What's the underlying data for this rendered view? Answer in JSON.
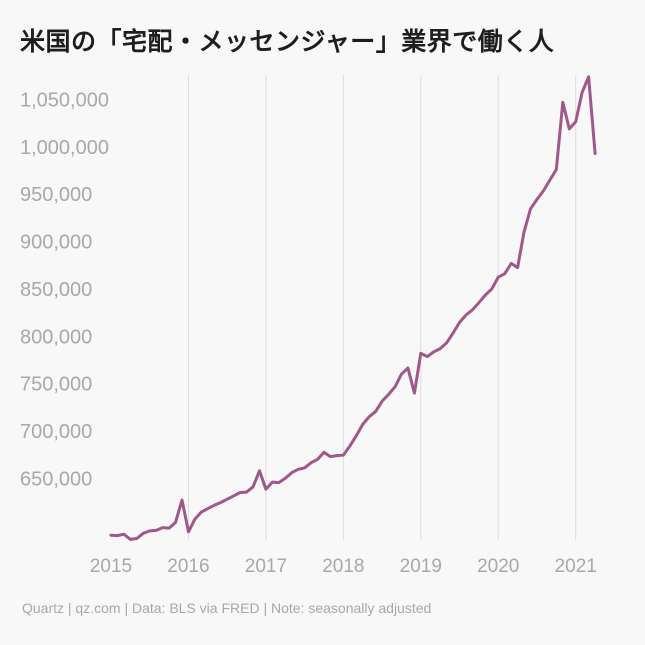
{
  "chart_data": {
    "type": "line",
    "title": "米国の「宅配・メッセンジャー」業界で働く人",
    "xlabel": "",
    "ylabel": "",
    "x_tick_labels": [
      "2015",
      "2016",
      "2017",
      "2018",
      "2019",
      "2020",
      "2021"
    ],
    "y_tick_values": [
      650000,
      700000,
      750000,
      800000,
      850000,
      900000,
      950000,
      1000000,
      1050000
    ],
    "y_tick_labels": [
      "650,000",
      "700,000",
      "750,000",
      "800,000",
      "850,000",
      "900,000",
      "950,000",
      "1,000,000",
      "1,050,000"
    ],
    "ylim": [
      587000,
      1078000
    ],
    "xlim": [
      2015.0,
      2021.417
    ],
    "grid": "vertical",
    "legend": "none",
    "series": [
      {
        "color": "#a0588a",
        "points": [
          [
            2015.0,
            590000
          ],
          [
            2015.083,
            589500
          ],
          [
            2015.167,
            591000
          ],
          [
            2015.25,
            585500
          ],
          [
            2015.333,
            586500
          ],
          [
            2015.417,
            592000
          ],
          [
            2015.5,
            594500
          ],
          [
            2015.583,
            595000
          ],
          [
            2015.667,
            598000
          ],
          [
            2015.75,
            597500
          ],
          [
            2015.833,
            603500
          ],
          [
            2015.917,
            627000
          ],
          [
            2016.0,
            593500
          ],
          [
            2016.083,
            607000
          ],
          [
            2016.167,
            614500
          ],
          [
            2016.25,
            618000
          ],
          [
            2016.333,
            621500
          ],
          [
            2016.417,
            624500
          ],
          [
            2016.5,
            628000
          ],
          [
            2016.583,
            631500
          ],
          [
            2016.667,
            635000
          ],
          [
            2016.75,
            635500
          ],
          [
            2016.833,
            641000
          ],
          [
            2016.917,
            658000
          ],
          [
            2017.0,
            638500
          ],
          [
            2017.083,
            646000
          ],
          [
            2017.167,
            645500
          ],
          [
            2017.25,
            650000
          ],
          [
            2017.333,
            656000
          ],
          [
            2017.417,
            659500
          ],
          [
            2017.5,
            661000
          ],
          [
            2017.583,
            666500
          ],
          [
            2017.667,
            670000
          ],
          [
            2017.75,
            677500
          ],
          [
            2017.833,
            673000
          ],
          [
            2017.917,
            674000
          ],
          [
            2018.0,
            674500
          ],
          [
            2018.083,
            684000
          ],
          [
            2018.167,
            695000
          ],
          [
            2018.25,
            707000
          ],
          [
            2018.333,
            715000
          ],
          [
            2018.417,
            720500
          ],
          [
            2018.5,
            731500
          ],
          [
            2018.583,
            738500
          ],
          [
            2018.667,
            746500
          ],
          [
            2018.75,
            760000
          ],
          [
            2018.833,
            766500
          ],
          [
            2018.917,
            740000
          ],
          [
            2019.0,
            782000
          ],
          [
            2019.083,
            778500
          ],
          [
            2019.167,
            783500
          ],
          [
            2019.25,
            787000
          ],
          [
            2019.333,
            793000
          ],
          [
            2019.417,
            803500
          ],
          [
            2019.5,
            814500
          ],
          [
            2019.583,
            822500
          ],
          [
            2019.667,
            828000
          ],
          [
            2019.75,
            835500
          ],
          [
            2019.833,
            843500
          ],
          [
            2019.917,
            850000
          ],
          [
            2020.0,
            862500
          ],
          [
            2020.083,
            866000
          ],
          [
            2020.167,
            877000
          ],
          [
            2020.25,
            872500
          ],
          [
            2020.333,
            910000
          ],
          [
            2020.417,
            934500
          ],
          [
            2020.5,
            944500
          ],
          [
            2020.583,
            953500
          ],
          [
            2020.667,
            965000
          ],
          [
            2020.75,
            976000
          ],
          [
            2020.833,
            1047000
          ],
          [
            2020.917,
            1019000
          ],
          [
            2021.0,
            1026500
          ],
          [
            2021.083,
            1057500
          ],
          [
            2021.167,
            1074000
          ],
          [
            2021.25,
            993000
          ]
        ]
      }
    ]
  },
  "footer": "Quartz | qz.com | Data: BLS via FRED | Note: seasonally adjusted"
}
